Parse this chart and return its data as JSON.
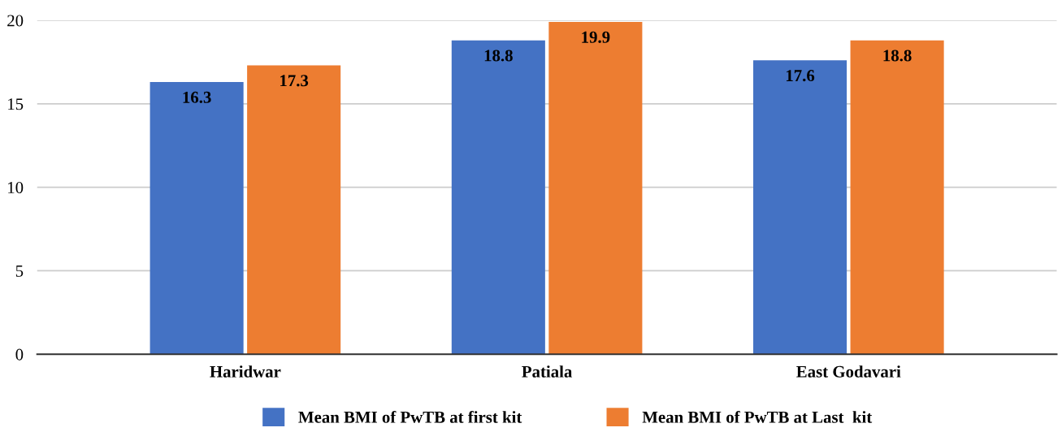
{
  "chart_data": {
    "type": "bar",
    "categories": [
      "Haridwar",
      "Patiala",
      "East Godavari"
    ],
    "series": [
      {
        "name": "Mean BMI of PwTB at first kit",
        "color": "#4472c4",
        "values": [
          16.3,
          18.8,
          17.6
        ]
      },
      {
        "name": "Mean BMI of PwTB at Last  kit",
        "color": "#ed7d31",
        "values": [
          17.3,
          19.9,
          18.8
        ]
      }
    ],
    "ylim": [
      0,
      20
    ],
    "yticks": [
      0,
      5,
      10,
      15,
      20
    ],
    "grid": "y",
    "legend": "bottom",
    "data_labels": true
  }
}
